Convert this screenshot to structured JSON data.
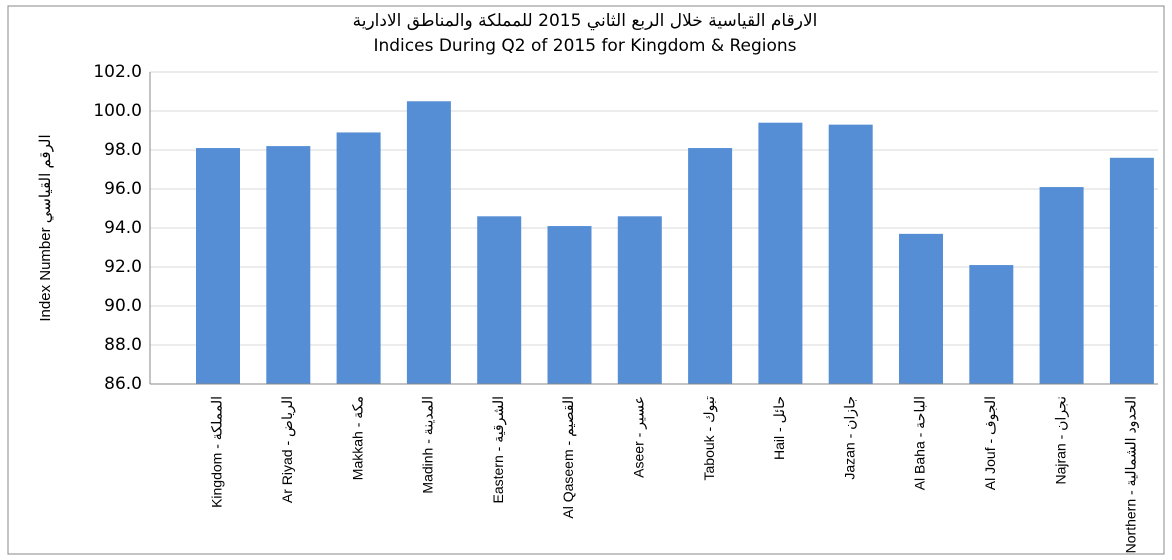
{
  "chart_data": {
    "type": "bar",
    "title": "الارقام القياسية خلال الربع الثاني 2015  للمملكة والمناطق الادارية",
    "subtitle": "Indices During Q2 of 2015 for Kingdom & Regions",
    "y_label": "Index Number  الرقم القياسي",
    "categories": [
      "Kingdom - المملكة",
      "Ar Riyad - الرياض",
      "Makkah - مكة",
      "Madinh - المدينة",
      "Eastern - الشرقية",
      "Al Qaseem - القصيم",
      "Aseer - عسير",
      "Tabouk - تبوك",
      "Hail - حائل",
      "Jazan - جازان",
      "Al Baha - الباحة",
      "Al Jouf - الجوف",
      "Najran - نجران",
      "Northern - الحدود الشمالية"
    ],
    "values": [
      98.1,
      98.2,
      98.9,
      100.5,
      94.6,
      94.1,
      94.6,
      98.1,
      99.4,
      99.3,
      93.7,
      92.1,
      96.1,
      97.6
    ],
    "color": "#558ed5",
    "ylim": [
      86,
      102
    ],
    "yticks": [
      {
        "value": 86,
        "label": "86.0"
      },
      {
        "value": 88,
        "label": "88.0"
      },
      {
        "value": 90,
        "label": "90.0"
      },
      {
        "value": 92,
        "label": "92.0"
      },
      {
        "value": 94,
        "label": "94.0"
      },
      {
        "value": 96,
        "label": "96.0"
      },
      {
        "value": 98,
        "label": "98.0"
      },
      {
        "value": 100,
        "label": "100.0"
      },
      {
        "value": 102,
        "label": "102.0"
      }
    ],
    "grid": true
  }
}
